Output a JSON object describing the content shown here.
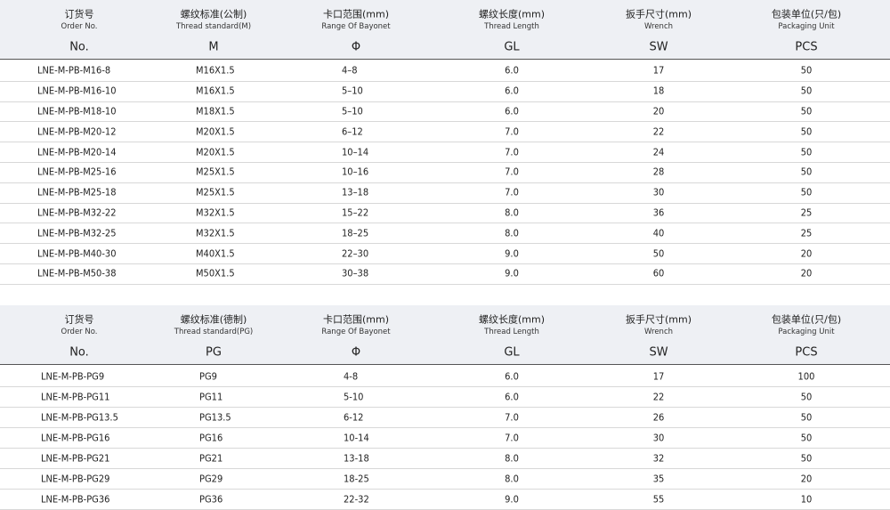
{
  "tables": [
    {
      "header": {
        "cn": [
          "订货号",
          "螺纹标准(公制)",
          "卡口范围(mm)",
          "螺纹长度(mm)",
          "扳手尺寸(mm)",
          "包装单位(只/包)"
        ],
        "en": [
          "Order No.",
          "Thread standard(M)",
          "Range Of Bayonet",
          "Thread Length",
          "Wrench",
          "Packaging Unit"
        ],
        "code": [
          "No.",
          "M",
          "Φ",
          "GL",
          "SW",
          "PCS"
        ]
      },
      "rows": [
        [
          "LNE-M-PB-M16-8",
          "M16X1.5",
          "4–8",
          "6.0",
          "17",
          "50"
        ],
        [
          "LNE-M-PB-M16-10",
          "M16X1.5",
          "5–10",
          "6.0",
          "18",
          "50"
        ],
        [
          "LNE-M-PB-M18-10",
          "M18X1.5",
          "5–10",
          "6.0",
          "20",
          "50"
        ],
        [
          "LNE-M-PB-M20-12",
          "M20X1.5",
          "6–12",
          "7.0",
          "22",
          "50"
        ],
        [
          "LNE-M-PB-M20-14",
          "M20X1.5",
          "10–14",
          "7.0",
          "24",
          "50"
        ],
        [
          "LNE-M-PB-M25-16",
          "M25X1.5",
          "10–16",
          "7.0",
          "28",
          "50"
        ],
        [
          "LNE-M-PB-M25-18",
          "M25X1.5",
          "13–18",
          "7.0",
          "30",
          "50"
        ],
        [
          "LNE-M-PB-M32-22",
          "M32X1.5",
          "15–22",
          "8.0",
          "36",
          "25"
        ],
        [
          "LNE-M-PB-M32-25",
          "M32X1.5",
          "18–25",
          "8.0",
          "40",
          "25"
        ],
        [
          "LNE-M-PB-M40-30",
          "M40X1.5",
          "22–30",
          "9.0",
          "50",
          "20"
        ],
        [
          "LNE-M-PB-M50-38",
          "M50X1.5",
          "30–38",
          "9.0",
          "60",
          "20"
        ]
      ]
    },
    {
      "header": {
        "cn": [
          "订货号",
          "螺纹标准(德制)",
          "卡口范围(mm)",
          "螺纹长度(mm)",
          "扳手尺寸(mm)",
          "包装单位(只/包)"
        ],
        "en": [
          "Order No.",
          "Thread standard(PG)",
          "Range Of Bayonet",
          "Thread Length",
          "Wrench",
          "Packaging Unit"
        ],
        "code": [
          "No.",
          "PG",
          "Φ",
          "GL",
          "SW",
          "PCS"
        ]
      },
      "rows": [
        [
          "LNE-M-PB-PG9",
          "PG9",
          "4-8",
          "6.0",
          "17",
          "100"
        ],
        [
          "LNE-M-PB-PG11",
          "PG11",
          "5-10",
          "6.0",
          "22",
          "50"
        ],
        [
          "LNE-M-PB-PG13.5",
          "PG13.5",
          "6-12",
          "7.0",
          "26",
          "50"
        ],
        [
          "LNE-M-PB-PG16",
          "PG16",
          "10-14",
          "7.0",
          "30",
          "50"
        ],
        [
          "LNE-M-PB-PG21",
          "PG21",
          "13-18",
          "8.0",
          "32",
          "50"
        ],
        [
          "LNE-M-PB-PG29",
          "PG29",
          "18-25",
          "8.0",
          "35",
          "20"
        ],
        [
          "LNE-M-PB-PG36",
          "PG36",
          "22-32",
          "9.0",
          "55",
          "10"
        ]
      ]
    }
  ]
}
